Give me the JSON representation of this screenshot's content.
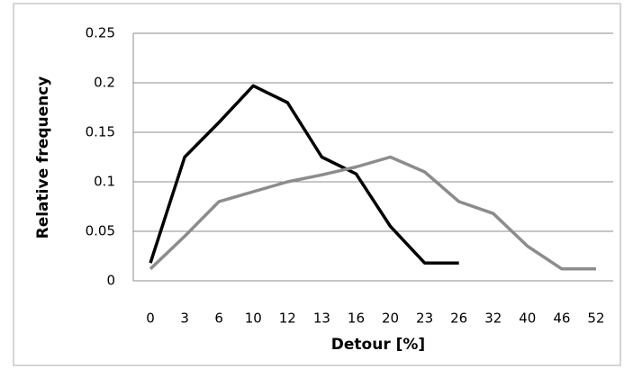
{
  "chart_data": {
    "type": "line",
    "x_label": "Detour [%]",
    "y_label": "Relative frequency",
    "categories": [
      "0",
      "3",
      "6",
      "10",
      "12",
      "13",
      "16",
      "20",
      "23",
      "26",
      "32",
      "40",
      "46",
      "52"
    ],
    "series": [
      {
        "color": "#000000",
        "values": [
          0.018,
          0.125,
          0.16,
          0.197,
          0.18,
          0.125,
          0.108,
          0.055,
          0.018,
          0.018,
          null,
          null,
          null,
          null
        ]
      },
      {
        "color": "#8c8c8c",
        "values": [
          0.012,
          0.045,
          0.08,
          0.09,
          0.1,
          0.107,
          0.115,
          0.125,
          0.11,
          0.08,
          0.068,
          0.035,
          0.012,
          0.012
        ]
      }
    ],
    "ylim": [
      0,
      0.25
    ],
    "yticks": [
      0,
      0.05,
      0.1,
      0.15,
      0.2,
      0.25
    ],
    "grid": true
  }
}
